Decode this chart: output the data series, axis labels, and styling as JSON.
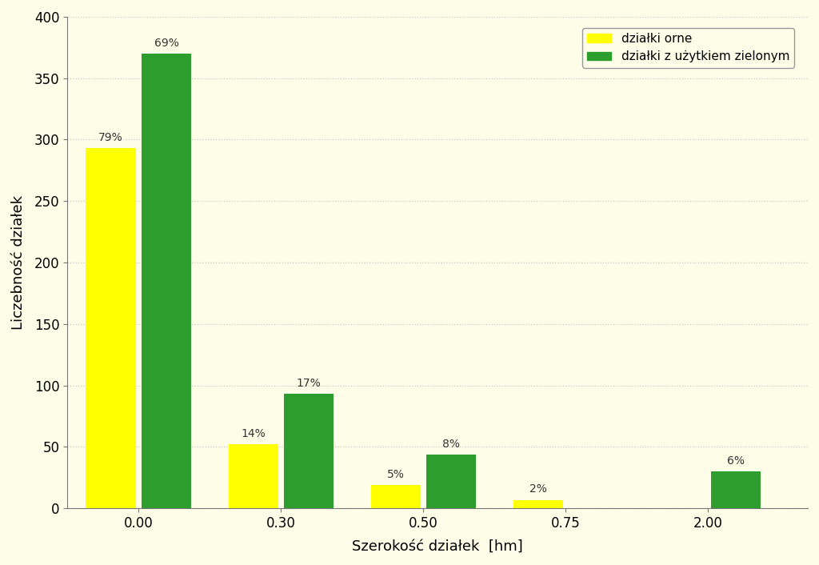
{
  "yellow_values": [
    293,
    52,
    19,
    7,
    0
  ],
  "green_values": [
    370,
    93,
    44,
    0,
    30
  ],
  "yellow_pct": [
    "79%",
    "14%",
    "5%",
    "2%",
    null
  ],
  "green_pct": [
    "69%",
    "17%",
    "8%",
    null,
    "6%"
  ],
  "yellow_color": "#FFFF00",
  "green_color": "#2D9E2D",
  "xlabel": "Szerokość działek  [hm]",
  "ylabel": "Liczebność działek",
  "ylim": [
    0,
    400
  ],
  "yticks": [
    0,
    50,
    100,
    150,
    200,
    250,
    300,
    350,
    400
  ],
  "xtick_positions": [
    0,
    1,
    2,
    3,
    4
  ],
  "xtick_labels": [
    "0.00",
    "0.30",
    "0.50",
    "0.75",
    "2.00"
  ],
  "legend_yellow": "działki orne",
  "legend_green": "działki z użytkiem zielonym",
  "background_color": "#FEFEE8",
  "grid_color": "#C8C8C8",
  "bar_width": 0.35,
  "group_centers": [
    0.15,
    1.15,
    2.15,
    3.15,
    4.15
  ],
  "xlim": [
    -0.5,
    4.7
  ]
}
